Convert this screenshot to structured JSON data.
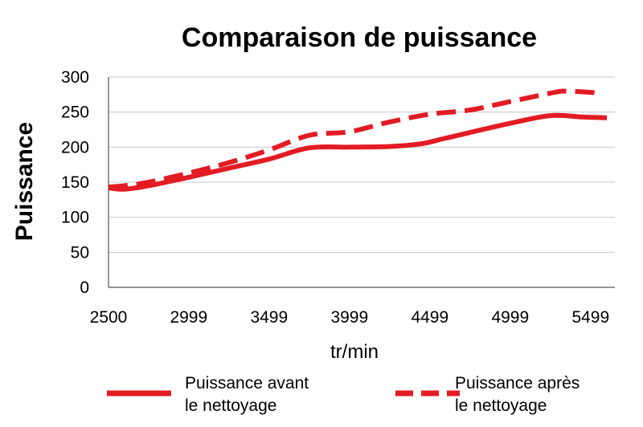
{
  "chart_data": {
    "type": "line",
    "title": "Comparaison de puissance",
    "xlabel": "tr/min",
    "ylabel": "Puissance",
    "x_ticks": [
      "2500",
      "2999",
      "3499",
      "3999",
      "4499",
      "4999",
      "5499"
    ],
    "y_ticks": [
      "0",
      "50",
      "100",
      "150",
      "200",
      "250",
      "300"
    ],
    "xlim": [
      2500,
      5650
    ],
    "ylim": [
      0,
      300
    ],
    "grid": "horizontal",
    "legend_position": "bottom",
    "color": "#e31b23",
    "series": [
      {
        "name_lines": [
          "Puissance avant",
          "le nettoyage"
        ],
        "style": "solid",
        "x": [
          2500,
          2600,
          2750,
          2999,
          3250,
          3499,
          3750,
          3999,
          4250,
          4450,
          4600,
          4999,
          5250,
          5450,
          5600
        ],
        "y": [
          142,
          140,
          145,
          157,
          170,
          183,
          199,
          200,
          201,
          205,
          213,
          234,
          245,
          243,
          242
        ]
      },
      {
        "name_lines": [
          "Puissance après",
          "le nettoyage"
        ],
        "style": "dashed",
        "x": [
          2500,
          2600,
          2750,
          2999,
          3250,
          3499,
          3750,
          3999,
          4250,
          4499,
          4750,
          4999,
          5250,
          5350,
          5575
        ],
        "y": [
          143,
          145,
          150,
          163,
          178,
          196,
          217,
          222,
          236,
          247,
          253,
          265,
          277,
          280,
          277
        ]
      }
    ]
  }
}
